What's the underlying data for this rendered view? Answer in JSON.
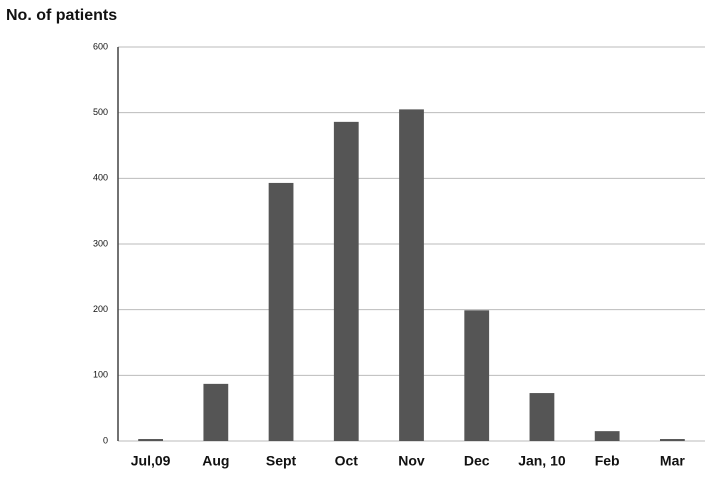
{
  "chart_data": {
    "type": "bar",
    "ylabel": "No. of patients",
    "categories": [
      "Jul,09",
      "Aug",
      "Sept",
      "Oct",
      "Nov",
      "Dec",
      "Jan, 10",
      "Feb",
      "Mar"
    ],
    "values": [
      3,
      87,
      393,
      486,
      505,
      199,
      73,
      15,
      3
    ],
    "color": "#555555",
    "ylim": [
      0,
      600
    ],
    "yticks": [
      0,
      100,
      200,
      300,
      400,
      500,
      600
    ],
    "grid": true
  }
}
